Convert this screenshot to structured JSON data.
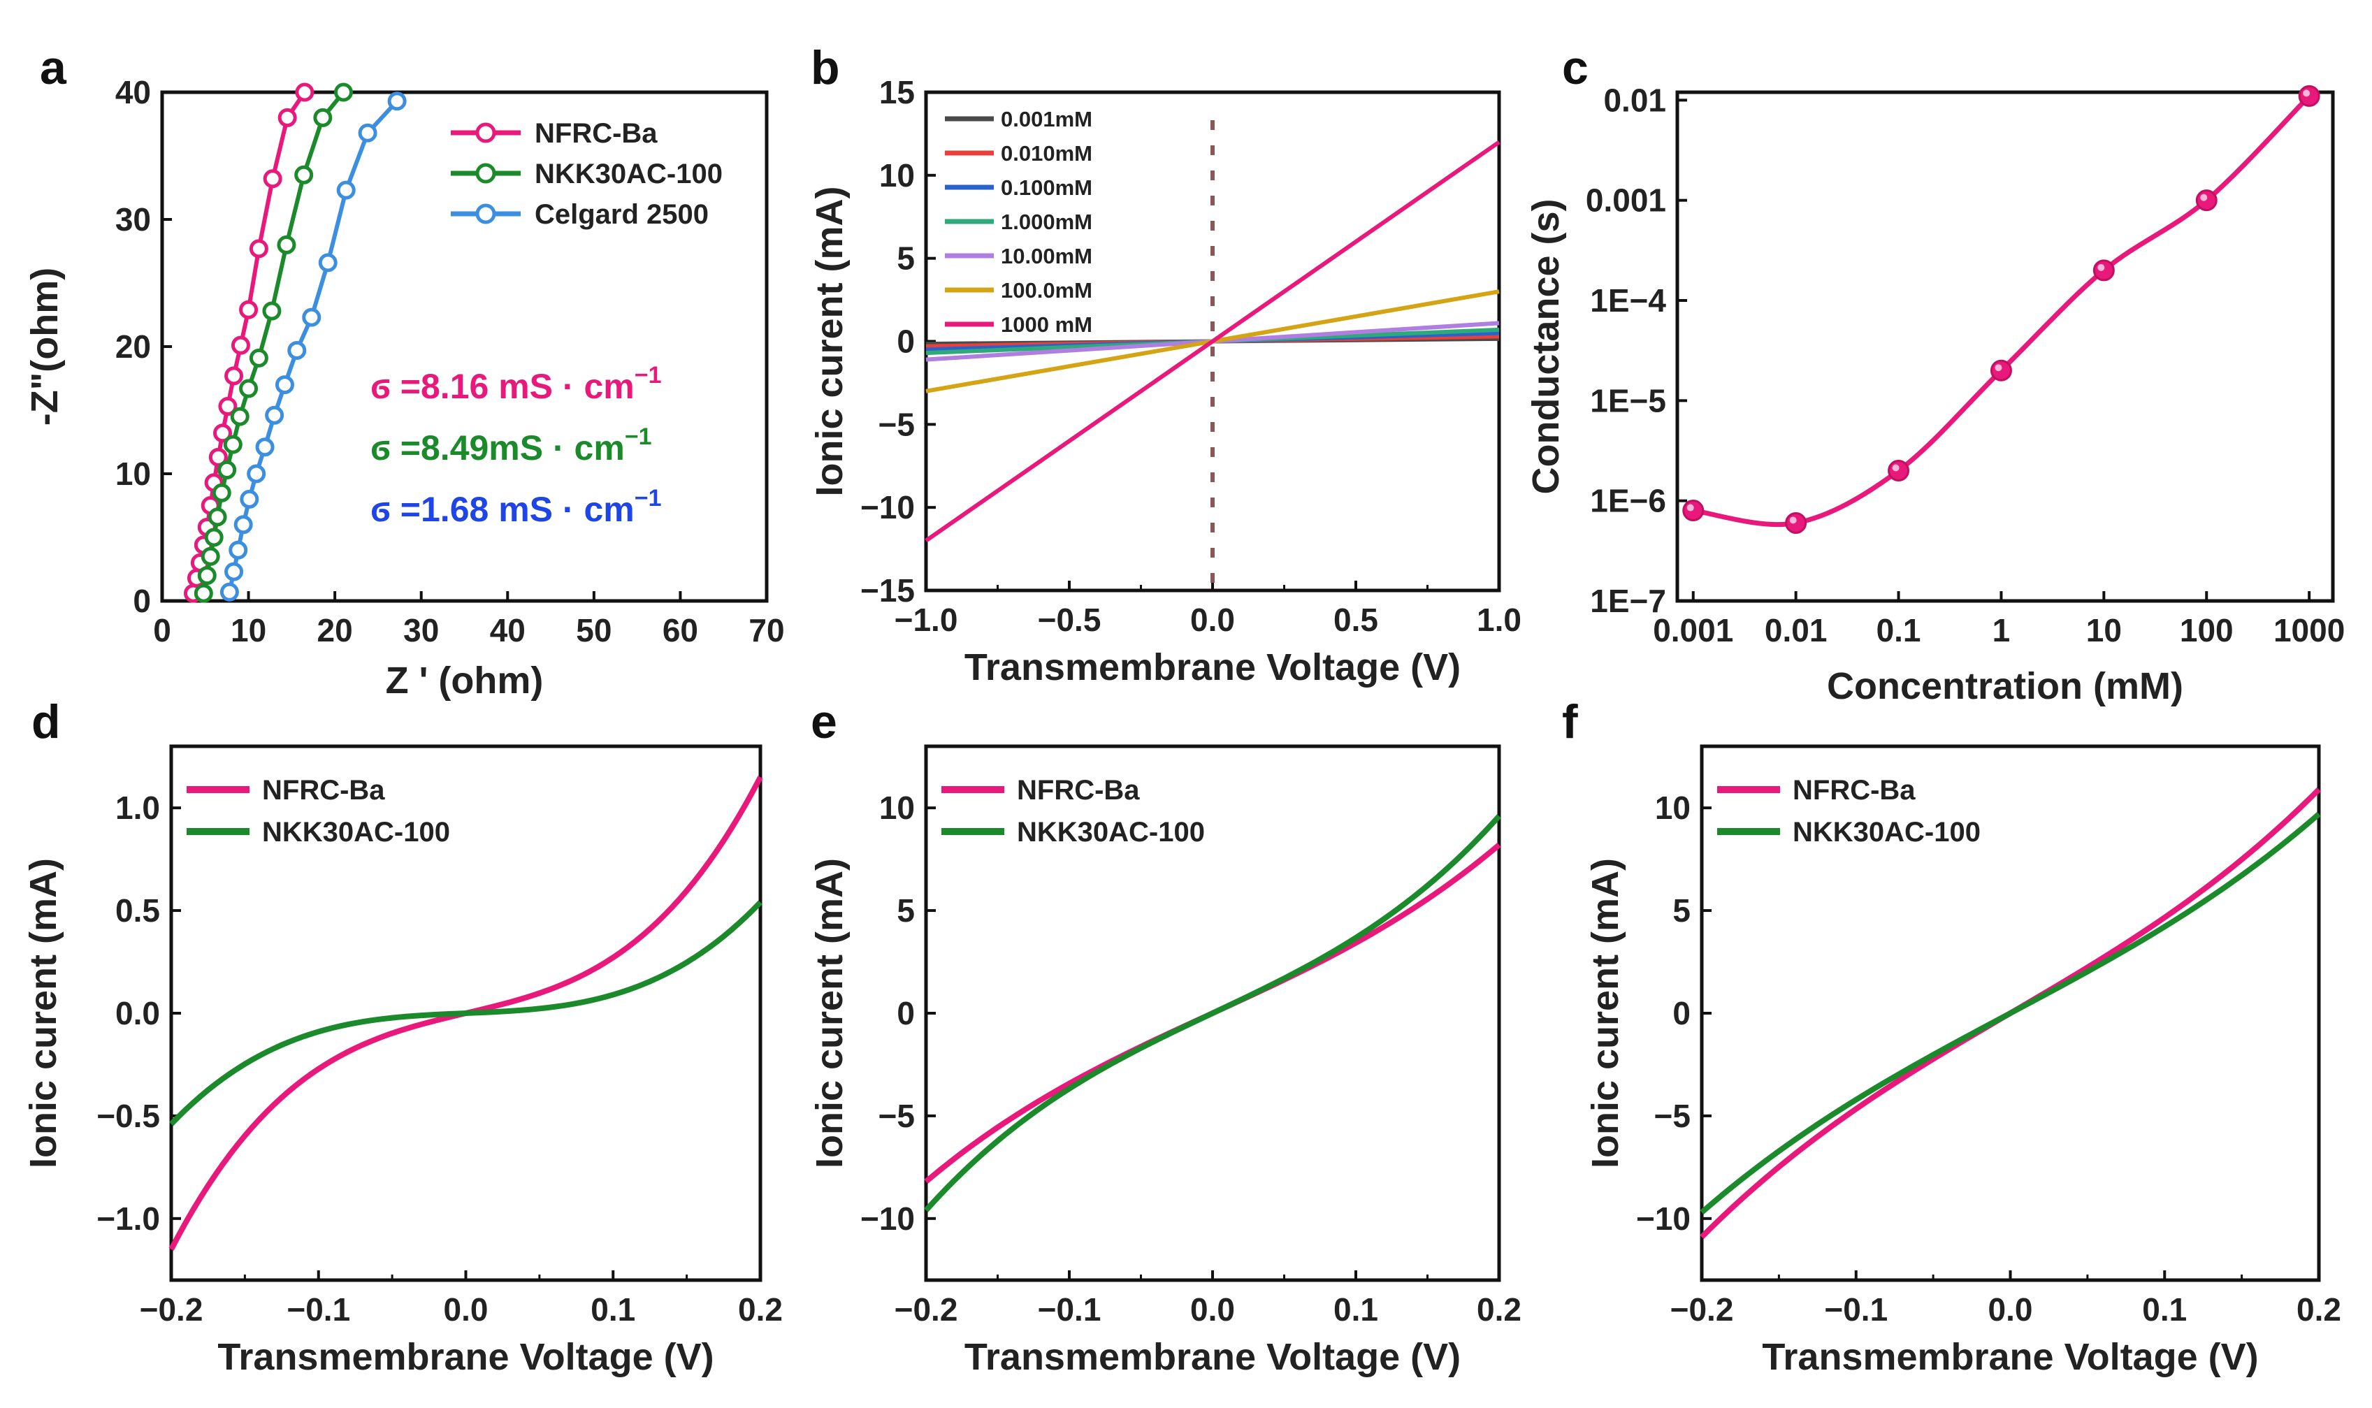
{
  "chart_data": [
    {
      "panel": "a",
      "type": "scatter",
      "xlabel": "Z ' (ohm)",
      "ylabel": "-Z\"(ohm)",
      "xlim": [
        0,
        70
      ],
      "ylim": [
        0,
        40
      ],
      "xticks": [
        "0",
        "10",
        "20",
        "30",
        "40",
        "50",
        "60",
        "70"
      ],
      "yticks": [
        "0",
        "10",
        "20",
        "30",
        "40"
      ],
      "legend_position": "top-right",
      "series": [
        {
          "name": "NFRC-Ba",
          "color": "#e8197b",
          "x": [
            3.6,
            4.0,
            4.4,
            4.8,
            5.2,
            5.6,
            6.0,
            6.5,
            7.0,
            7.6,
            8.3,
            9.1,
            10.0,
            11.2,
            12.8,
            14.5,
            16.5
          ],
          "y": [
            0.6,
            1.8,
            3.0,
            4.4,
            5.8,
            7.5,
            9.3,
            11.3,
            13.2,
            15.3,
            17.7,
            20.1,
            22.9,
            27.7,
            33.2,
            38.0,
            40.0
          ]
        },
        {
          "name": "NKK30AC-100",
          "color": "#1a8a2a",
          "x": [
            4.8,
            5.2,
            5.6,
            6.0,
            6.4,
            6.9,
            7.5,
            8.2,
            9.0,
            10.0,
            11.2,
            12.7,
            14.4,
            16.4,
            18.6,
            21.0
          ],
          "y": [
            0.6,
            2.0,
            3.5,
            5.0,
            6.6,
            8.5,
            10.3,
            12.3,
            14.5,
            16.7,
            19.1,
            22.8,
            28.0,
            33.5,
            38.0,
            40.0
          ]
        },
        {
          "name": "Celgard 2500",
          "color": "#3c8fe0",
          "x": [
            7.8,
            8.3,
            8.8,
            9.4,
            10.1,
            10.9,
            11.9,
            13.0,
            14.2,
            15.6,
            17.3,
            19.2,
            21.3,
            23.8,
            27.2
          ],
          "y": [
            0.7,
            2.3,
            4.0,
            6.0,
            8.0,
            10.0,
            12.1,
            14.6,
            17.0,
            19.7,
            22.3,
            26.6,
            32.3,
            36.8,
            39.3
          ]
        }
      ],
      "annotations": [
        {
          "text": "ϭ =8.16 mS · cm",
          "sup": "−1",
          "color": "#e8197b"
        },
        {
          "text": "ϭ =8.49mS · cm",
          "sup": "−1",
          "color": "#1a8a2a"
        },
        {
          "text": "ϭ =1.68 mS · cm",
          "sup": "−1",
          "color": "#1e46e6"
        }
      ]
    },
    {
      "panel": "b",
      "type": "line",
      "xlabel": "Transmembrane Voltage (V)",
      "ylabel": "Ionic curent (mA)",
      "xlim": [
        -1.0,
        1.0
      ],
      "ylim": [
        -15,
        15
      ],
      "xticks": [
        "−1.0",
        "−0.5",
        "0.0",
        "0.5",
        "1.0"
      ],
      "yticks": [
        "−15",
        "−10",
        "−5",
        "0",
        "5",
        "10",
        "15"
      ],
      "legend_position": "top-left",
      "series": [
        {
          "name": "0.001mM",
          "color": "#4a4a4a",
          "x": [
            -1.0,
            1.0
          ],
          "y": [
            -0.15,
            0.15
          ]
        },
        {
          "name": "0.010mM",
          "color": "#e8413c",
          "x": [
            -1.0,
            1.0
          ],
          "y": [
            -0.3,
            0.3
          ]
        },
        {
          "name": "0.100mM",
          "color": "#2a62cc",
          "x": [
            -1.0,
            1.0
          ],
          "y": [
            -0.5,
            0.5
          ]
        },
        {
          "name": "1.000mM",
          "color": "#2eaa7a",
          "x": [
            -1.0,
            1.0
          ],
          "y": [
            -0.7,
            0.7
          ]
        },
        {
          "name": "10.00mM",
          "color": "#b07ee0",
          "x": [
            -1.0,
            1.0
          ],
          "y": [
            -1.1,
            1.1
          ]
        },
        {
          "name": "100.0mM",
          "color": "#d4a414",
          "x": [
            -1.0,
            1.0
          ],
          "y": [
            -3.0,
            3.0
          ]
        },
        {
          "name": "1000 mM",
          "color": "#e8197b",
          "x": [
            -1.0,
            1.0
          ],
          "y": [
            -12.0,
            12.0
          ]
        }
      ],
      "vline": {
        "x": 0.0,
        "color": "#8a5858"
      }
    },
    {
      "panel": "c",
      "type": "line",
      "xlabel": "Concentration (mM)",
      "ylabel": "Conductance (s)",
      "xscale": "log",
      "yscale": "log",
      "xticks": [
        "0.001",
        "0.01",
        "0.1",
        "1",
        "10",
        "100",
        "1000"
      ],
      "yticks": [
        "1E−7",
        "1E−6",
        "1E−5",
        "1E−4",
        "0.001",
        "0.01"
      ],
      "series": [
        {
          "name": "Conductance",
          "color": "#e8197b",
          "x": [
            0.001,
            0.01,
            0.1,
            1,
            10,
            100,
            1000
          ],
          "y": [
            8e-07,
            6e-07,
            2e-06,
            2e-05,
            0.0002,
            0.001,
            0.011
          ]
        }
      ]
    },
    {
      "panel": "d",
      "type": "line",
      "xlabel": "Transmembrane Voltage (V)",
      "ylabel": "Ionic curent (mA)",
      "xlim": [
        -0.2,
        0.2
      ],
      "ylim": [
        -1.3,
        1.3
      ],
      "xticks": [
        "−0.2",
        "−0.1",
        "0.0",
        "0.1",
        "0.2"
      ],
      "yticks": [
        "−1.0",
        "−0.5",
        "0.0",
        "0.5",
        "1.0"
      ],
      "legend_position": "top-left",
      "series": [
        {
          "name": "NFRC-Ba",
          "color": "#e8197b",
          "linear": 1.7,
          "cubic": 101.25
        },
        {
          "name": "NKK30AC-100",
          "color": "#1a8a2a",
          "linear": 0.3,
          "cubic": 60.0
        }
      ]
    },
    {
      "panel": "e",
      "type": "line",
      "xlabel": "Transmembrane Voltage (V)",
      "ylabel": "Ionic curent (mA)",
      "xlim": [
        -0.2,
        0.2
      ],
      "ylim": [
        -13,
        13
      ],
      "xticks": [
        "−0.2",
        "−0.1",
        "0.0",
        "0.1",
        "0.2"
      ],
      "yticks": [
        "−10",
        "−5",
        "0",
        "5",
        "10"
      ],
      "legend_position": "top-left",
      "series": [
        {
          "name": "NFRC-Ba",
          "color": "#e8197b",
          "linear": 32.0,
          "cubic": 225.0
        },
        {
          "name": "NKK30AC-100",
          "color": "#1a8a2a",
          "linear": 33.0,
          "cubic": 375.0
        }
      ]
    },
    {
      "panel": "f",
      "type": "line",
      "xlabel": "Transmembrane Voltage (V)",
      "ylabel": "Ionic curent (mA)",
      "xlim": [
        -0.2,
        0.2
      ],
      "ylim": [
        -13,
        13
      ],
      "xticks": [
        "−0.2",
        "−0.1",
        "0.0",
        "0.1",
        "0.2"
      ],
      "yticks": [
        "−10",
        "−5",
        "0",
        "5",
        "10"
      ],
      "legend_position": "top-left",
      "series": [
        {
          "name": "NFRC-Ba",
          "color": "#e8197b",
          "linear": 44.0,
          "cubic": 262.5
        },
        {
          "name": "NKK30AC-100",
          "color": "#1a8a2a",
          "linear": 40.0,
          "cubic": 212.5
        }
      ]
    }
  ]
}
